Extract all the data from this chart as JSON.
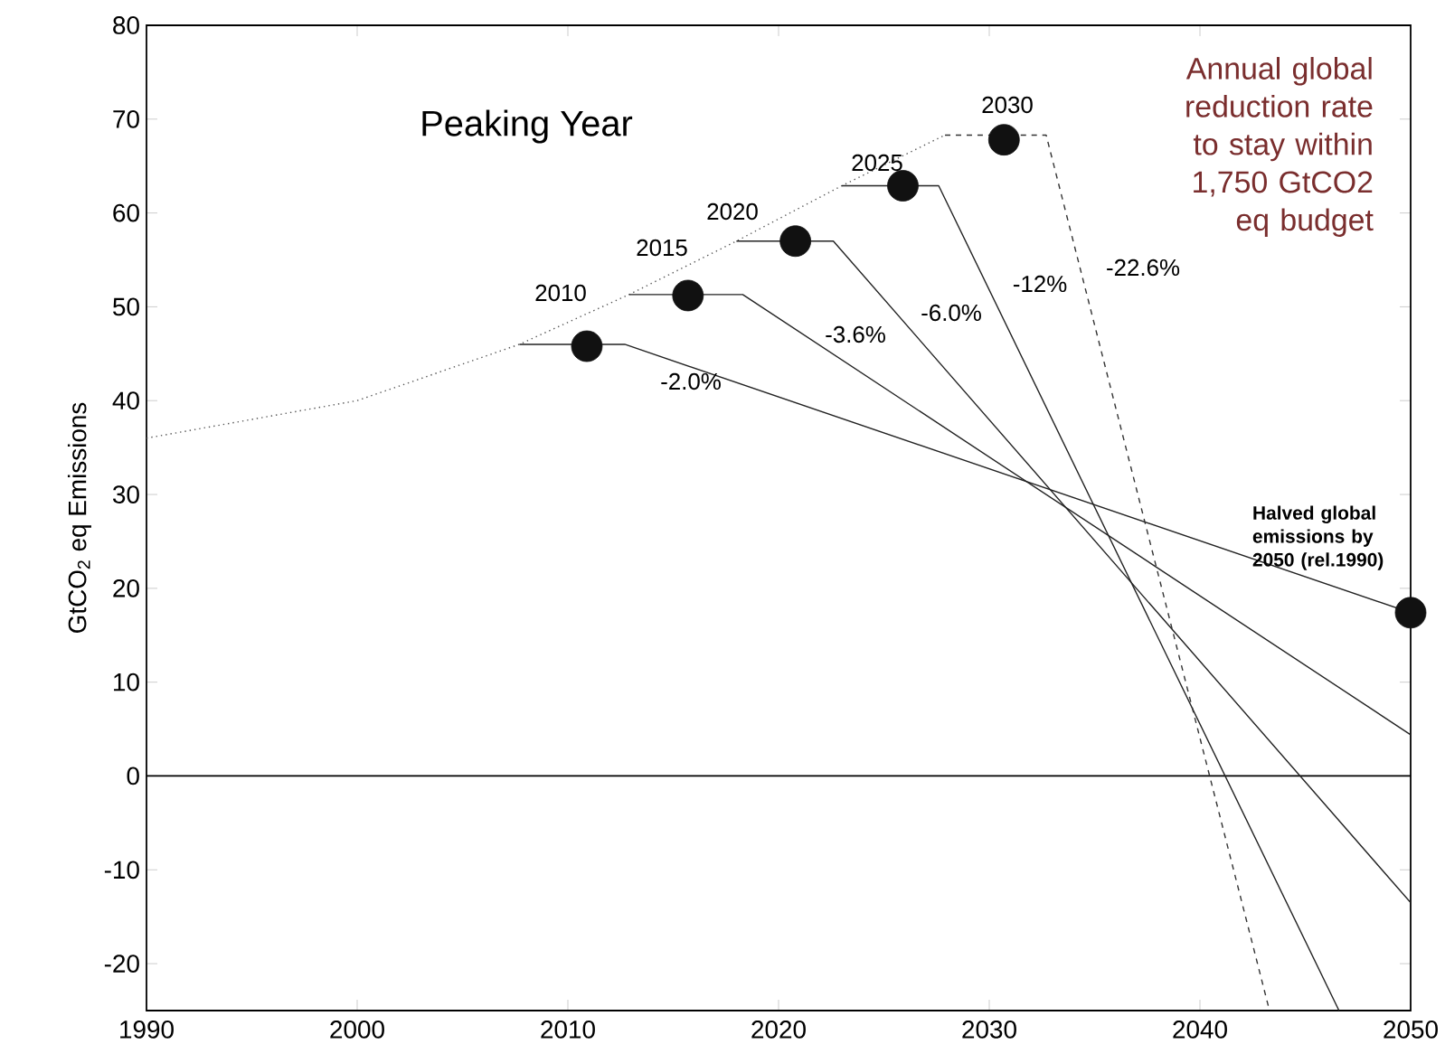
{
  "chart_data": {
    "type": "line",
    "title": "Peaking Year",
    "ylabel": "GtCO$_{2}$ eq Emissions",
    "xlim": [
      1990,
      2050
    ],
    "ylim": [
      -25,
      80
    ],
    "xticks": [
      1990,
      2000,
      2010,
      2020,
      2030,
      2040,
      2050
    ],
    "yticks": [
      -20,
      -10,
      0,
      10,
      20,
      30,
      40,
      50,
      60,
      70,
      80
    ],
    "grid": false,
    "ref_lines": [
      {
        "axis": "y",
        "value": 0,
        "color": "#000000",
        "line_style": "solid"
      }
    ],
    "series": [
      {
        "color": "#555555",
        "line_style": "dotted",
        "marker": "none",
        "x": [
          1990,
          2000,
          2007.7,
          2012.9,
          2018,
          2023,
          2027.9
        ],
        "values": [
          36,
          40,
          46,
          51.3,
          57,
          62.9,
          68.3
        ]
      },
      {
        "color": "#222222",
        "line_style": "solid",
        "marker": "none",
        "x": [
          2007.7,
          2012.7,
          2050
        ],
        "values": [
          46,
          46,
          17.4
        ]
      },
      {
        "color": "#222222",
        "line_style": "solid",
        "marker": "none",
        "x": [
          2012.9,
          2018.3,
          2050
        ],
        "values": [
          51.3,
          51.3,
          4.4
        ]
      },
      {
        "color": "#222222",
        "line_style": "solid",
        "marker": "none",
        "x": [
          2018,
          2022.6,
          2050
        ],
        "values": [
          57,
          57,
          -13.5
        ]
      },
      {
        "color": "#222222",
        "line_style": "solid",
        "marker": "none",
        "x": [
          2023,
          2027.6,
          2046.6
        ],
        "values": [
          62.9,
          62.9,
          -25
        ]
      },
      {
        "color": "#333333",
        "line_style": "dashed",
        "marker": "none",
        "x": [
          2027.9,
          2032.7,
          2043.3
        ],
        "values": [
          68.3,
          68.3,
          -25
        ]
      },
      {
        "type": "scatter",
        "color": "#111111",
        "marker": "circle",
        "x": [
          2010.9,
          2015.7,
          2020.8,
          2025.9,
          2030.7,
          2050
        ],
        "values": [
          45.8,
          51.2,
          57,
          62.9,
          67.8,
          17.4
        ]
      }
    ],
    "annotations": [
      "2010",
      "2015",
      "2020",
      "2025",
      "2030",
      "-2.0%",
      "-3.6%",
      "-6.0%",
      "-12%",
      "-22.6%",
      {
        "text": "Halved global emissions by 2050 (rel.1990)",
        "x": 2050,
        "y": 17.4
      },
      "Annual global reduction rate to stay within 1,750 GtCO2 eq budget"
    ]
  }
}
